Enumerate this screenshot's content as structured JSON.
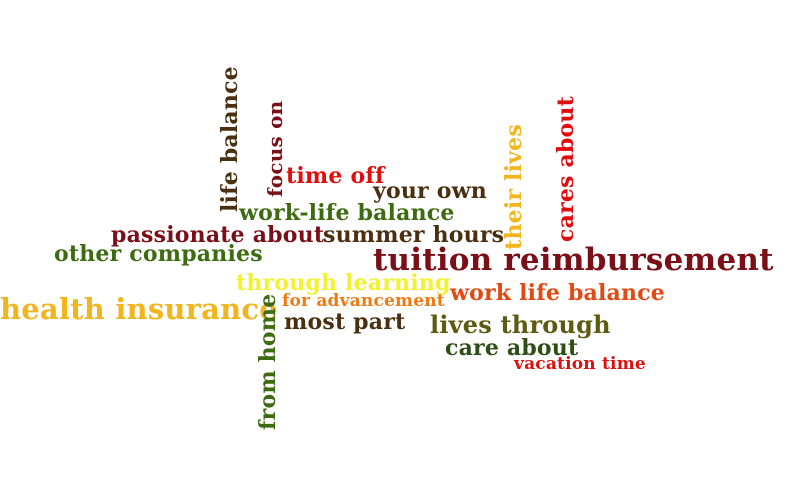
{
  "words": {
    "life_balance": "life balance",
    "focus_on": "focus on",
    "time_off": "time off",
    "your_own": "your own",
    "work_life_balance_hyphen": "work-life balance",
    "their_lives": "their lives",
    "cares_about": "cares about",
    "passionate_about": "passionate about",
    "summer_hours": "summer hours",
    "other_companies": "other companies",
    "tuition_reimbursement": "tuition reimbursement",
    "through_learning": "through learning",
    "work_life_balance": "work life balance",
    "for_advancement": "for advancement",
    "health_insurance": "health insurance",
    "most_part": "most part",
    "lives_through": "lives through",
    "care_about": "care about",
    "vacation_time": "vacation time",
    "from_home": "from home"
  },
  "colors": {
    "red": "#e00f0f",
    "dark_red": "#7a0f18",
    "olive": "#5f5a12",
    "green": "#3d6b12",
    "orange": "#f07a12",
    "orange_red": "#e14a12",
    "gold": "#f2b51d",
    "yellow": "#f2f230",
    "brown": "#4a2f10",
    "dark_green": "#2d4f16",
    "background": "#ffffff"
  }
}
